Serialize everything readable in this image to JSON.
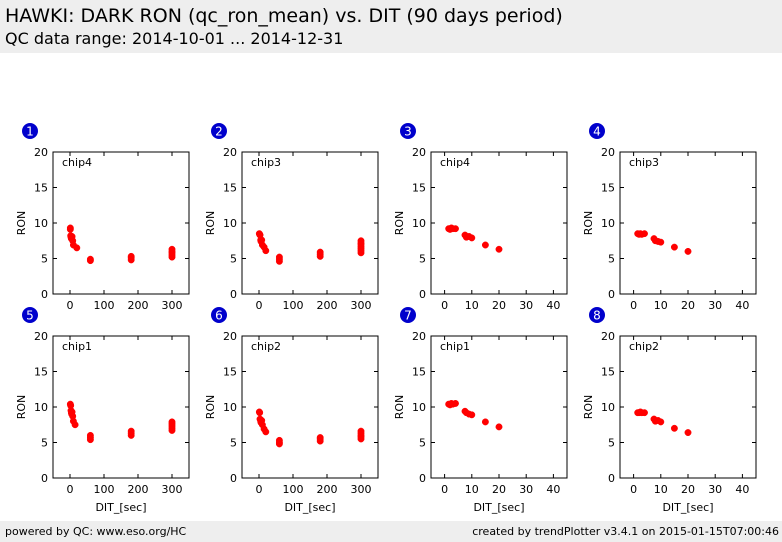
{
  "header": {
    "title": "HAWKI: DARK RON (qc_ron_mean) vs. DIT (90 days period)",
    "subtitle": "QC data range: 2014-10-01 ... 2014-12-31"
  },
  "footer": {
    "left": "powered by QC: www.eso.org/HC",
    "right": "created by trendPlotter v3.4.1 on 2015-01-15T07:00:46"
  },
  "colors": {
    "marker": "#ff0000",
    "badge": "#0000cc",
    "badge_text": "#ffffff",
    "header_bg": "#eeeeee"
  },
  "chart_data": [
    {
      "type": "scatter",
      "badge": "1",
      "label": "chip4",
      "xlabel": "",
      "ylabel": "RON",
      "xlim": [
        -50,
        350
      ],
      "ylim": [
        0,
        20
      ],
      "xticks": [
        0,
        100,
        200,
        300
      ],
      "yticks": [
        0,
        5,
        10,
        15,
        20
      ],
      "x": [
        1,
        1,
        2,
        3,
        4,
        5,
        6,
        8,
        10,
        20,
        60,
        60,
        180,
        180,
        180,
        300,
        300,
        300,
        300,
        300
      ],
      "y": [
        9.3,
        9.1,
        8.2,
        8.0,
        7.8,
        7.9,
        8.1,
        7.5,
        6.9,
        6.5,
        4.7,
        4.9,
        4.8,
        5.1,
        5.3,
        5.2,
        5.5,
        5.8,
        6.0,
        6.3
      ]
    },
    {
      "type": "scatter",
      "badge": "2",
      "label": "chip3",
      "xlabel": "",
      "ylabel": "RON",
      "xlim": [
        -50,
        350
      ],
      "ylim": [
        0,
        20
      ],
      "xticks": [
        0,
        100,
        200,
        300
      ],
      "yticks": [
        0,
        5,
        10,
        15,
        20
      ],
      "x": [
        1,
        2,
        3,
        5,
        6,
        8,
        10,
        15,
        20,
        60,
        60,
        60,
        180,
        180,
        180,
        300,
        300,
        300,
        300,
        300,
        300,
        300
      ],
      "y": [
        8.5,
        8.4,
        8.3,
        7.6,
        7.4,
        7.6,
        6.9,
        6.6,
        6.1,
        4.6,
        4.9,
        5.2,
        5.3,
        5.6,
        5.9,
        5.8,
        6.1,
        6.4,
        6.7,
        7.0,
        7.2,
        7.5
      ]
    },
    {
      "type": "scatter",
      "badge": "3",
      "label": "chip4",
      "xlabel": "",
      "ylabel": "RON",
      "xlim": [
        -5,
        45
      ],
      "ylim": [
        0,
        20
      ],
      "xticks": [
        0,
        10,
        20,
        30,
        40
      ],
      "yticks": [
        0,
        5,
        10,
        15,
        20
      ],
      "x": [
        1.5,
        2,
        2.5,
        3,
        4,
        7.5,
        8,
        9,
        10,
        15,
        20
      ],
      "y": [
        9.2,
        9.1,
        9.3,
        9.2,
        9.2,
        8.3,
        8.0,
        8.1,
        7.9,
        6.9,
        6.3
      ]
    },
    {
      "type": "scatter",
      "badge": "4",
      "label": "chip3",
      "xlabel": "",
      "ylabel": "RON",
      "xlim": [
        -5,
        45
      ],
      "ylim": [
        0,
        20
      ],
      "xticks": [
        0,
        10,
        20,
        30,
        40
      ],
      "yticks": [
        0,
        5,
        10,
        15,
        20
      ],
      "x": [
        1.5,
        2,
        2.5,
        3,
        4,
        7.5,
        8,
        9,
        10,
        15,
        20
      ],
      "y": [
        8.5,
        8.4,
        8.5,
        8.4,
        8.5,
        7.8,
        7.5,
        7.4,
        7.3,
        6.6,
        6.0
      ]
    },
    {
      "type": "scatter",
      "badge": "5",
      "label": "chip1",
      "xlabel": "DIT_[sec]",
      "ylabel": "RON",
      "xlim": [
        -50,
        350
      ],
      "ylim": [
        0,
        20
      ],
      "xticks": [
        0,
        100,
        200,
        300
      ],
      "yticks": [
        0,
        5,
        10,
        15,
        20
      ],
      "x": [
        1,
        2,
        3,
        4,
        5,
        6,
        8,
        10,
        15,
        60,
        60,
        60,
        180,
        180,
        180,
        300,
        300,
        300,
        300,
        300
      ],
      "y": [
        10.4,
        10.2,
        9.5,
        9.2,
        9.0,
        9.3,
        8.7,
        8.0,
        7.5,
        5.4,
        5.7,
        6.0,
        6.0,
        6.3,
        6.6,
        6.7,
        7.0,
        7.3,
        7.6,
        7.9
      ]
    },
    {
      "type": "scatter",
      "badge": "6",
      "label": "chip2",
      "xlabel": "DIT_[sec]",
      "ylabel": "RON",
      "xlim": [
        -50,
        350
      ],
      "ylim": [
        0,
        20
      ],
      "xticks": [
        0,
        100,
        200,
        300
      ],
      "yticks": [
        0,
        5,
        10,
        15,
        20
      ],
      "x": [
        1,
        2,
        3,
        5,
        6,
        8,
        10,
        15,
        20,
        60,
        60,
        60,
        180,
        180,
        180,
        300,
        300,
        300,
        300,
        300
      ],
      "y": [
        9.3,
        9.2,
        8.3,
        8.0,
        7.8,
        8.1,
        7.5,
        6.9,
        6.5,
        4.8,
        5.0,
        5.3,
        5.2,
        5.5,
        5.7,
        5.5,
        5.8,
        6.0,
        6.3,
        6.6
      ]
    },
    {
      "type": "scatter",
      "badge": "7",
      "label": "chip1",
      "xlabel": "DIT_[sec]",
      "ylabel": "RON",
      "xlim": [
        -5,
        45
      ],
      "ylim": [
        0,
        20
      ],
      "xticks": [
        0,
        10,
        20,
        30,
        40
      ],
      "yticks": [
        0,
        5,
        10,
        15,
        20
      ],
      "x": [
        1.5,
        2,
        2.5,
        3,
        4,
        7.5,
        8,
        9,
        10,
        15,
        20
      ],
      "y": [
        10.4,
        10.3,
        10.5,
        10.4,
        10.5,
        9.4,
        9.2,
        9.0,
        8.9,
        7.9,
        7.2
      ]
    },
    {
      "type": "scatter",
      "badge": "8",
      "label": "chip2",
      "xlabel": "DIT_[sec]",
      "ylabel": "RON",
      "xlim": [
        -5,
        45
      ],
      "ylim": [
        0,
        20
      ],
      "xticks": [
        0,
        10,
        20,
        30,
        40
      ],
      "yticks": [
        0,
        5,
        10,
        15,
        20
      ],
      "x": [
        1.5,
        2,
        2.5,
        3,
        4,
        7.5,
        8,
        9,
        10,
        15,
        20
      ],
      "y": [
        9.2,
        9.2,
        9.3,
        9.2,
        9.2,
        8.3,
        8.0,
        8.1,
        7.9,
        7.0,
        6.4
      ]
    }
  ]
}
